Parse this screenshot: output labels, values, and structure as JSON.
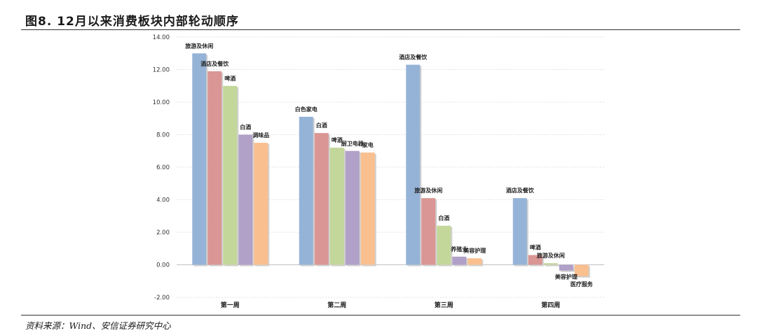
{
  "header": {
    "title": "图8. 12月以来消费板块内部轮动顺序"
  },
  "footer": {
    "source": "资料来源：Wind、安信证券研究中心"
  },
  "chart_data": {
    "type": "bar",
    "title": "",
    "xlabel": "",
    "ylabel": "",
    "ylim": [
      -2,
      14
    ],
    "yticks": [
      "-2.00",
      "0.00",
      "2.00",
      "4.00",
      "6.00",
      "8.00",
      "10.00",
      "12.00",
      "14.00"
    ],
    "grid": true,
    "legend": "none",
    "colors": [
      "#95b3d7",
      "#da9694",
      "#c4d79b",
      "#b1a0c7",
      "#fabf8f"
    ],
    "groups": [
      {
        "category": "第一周",
        "bars": [
          {
            "label": "旅游及休闲",
            "value": 13.0
          },
          {
            "label": "酒店及餐饮",
            "value": 11.9
          },
          {
            "label": "啤酒",
            "value": 11.0
          },
          {
            "label": "白酒",
            "value": 8.0
          },
          {
            "label": "调味品",
            "value": 7.5
          }
        ]
      },
      {
        "category": "第二周",
        "bars": [
          {
            "label": "白色家电",
            "value": 9.1
          },
          {
            "label": "白酒",
            "value": 8.1
          },
          {
            "label": "啤酒",
            "value": 7.2
          },
          {
            "label": "厨卫电器",
            "value": 7.0
          },
          {
            "label": "家电",
            "value": 6.9
          }
        ]
      },
      {
        "category": "第三周",
        "bars": [
          {
            "label": "酒店及餐饮",
            "value": 12.3
          },
          {
            "label": "旅游及休闲",
            "value": 4.1
          },
          {
            "label": "白酒",
            "value": 2.4
          },
          {
            "label": "养殖业",
            "value": 0.5
          },
          {
            "label": "美容护理",
            "value": 0.4
          }
        ]
      },
      {
        "category": "第四周",
        "bars": [
          {
            "label": "酒店及餐饮",
            "value": 4.1
          },
          {
            "label": "啤酒",
            "value": 0.6
          },
          {
            "label": "旅游及休闲",
            "value": 0.1
          },
          {
            "label": "美容护理",
            "value": -0.35
          },
          {
            "label": "医疗服务",
            "value": -0.7
          }
        ]
      }
    ]
  }
}
